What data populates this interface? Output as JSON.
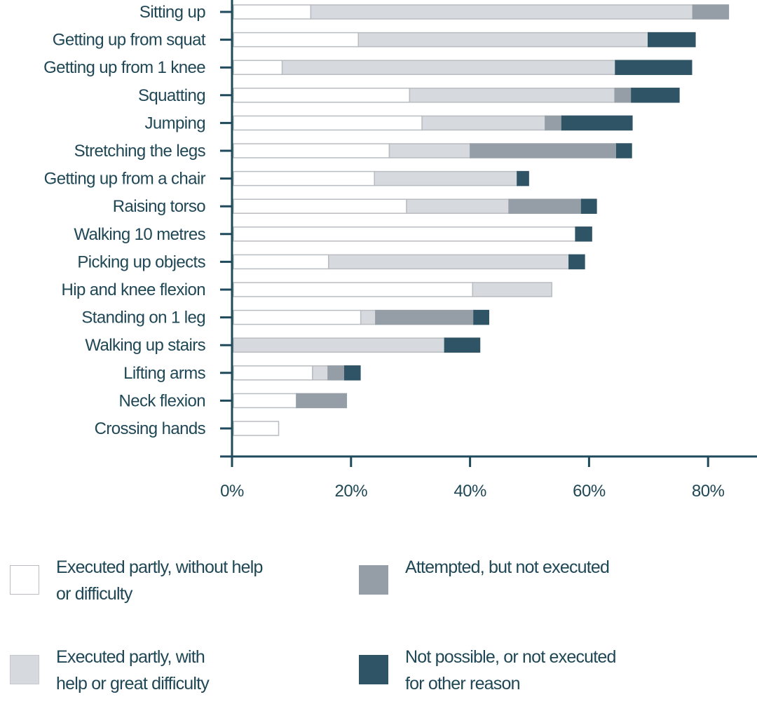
{
  "chart_data": {
    "type": "bar",
    "orientation": "horizontal",
    "stacked": true,
    "title": "",
    "xlabel": "",
    "ylabel": "",
    "xlim": [
      0,
      88
    ],
    "xticks": [
      0,
      20,
      40,
      60,
      80
    ],
    "xtick_labels": [
      "0%",
      "20%",
      "40%",
      "60%",
      "80%"
    ],
    "grid": false,
    "legend_position": "bottom",
    "categories": [
      "Sitting up",
      "Getting up from squat",
      "Getting up from 1 knee",
      "Squatting",
      "Jumping",
      "Stretching the legs",
      "Getting up from a chair",
      "Raising torso",
      "Walking 10 metres",
      "Picking up objects",
      "Hip and knee flexion",
      "Standing on 1 leg",
      "Walking up stairs",
      "Lifting arms",
      "Neck flexion",
      "Crossing hands"
    ],
    "series": [
      {
        "name": "Executed partly, without help or difficulty",
        "color": "#ffffff",
        "stroke": "#b9bcc0",
        "values": [
          13.0,
          21.0,
          8.2,
          29.6,
          31.7,
          26.2,
          23.7,
          29.1,
          57.5,
          16.0,
          40.2,
          21.4,
          0,
          13.3,
          10.6,
          7.6
        ]
      },
      {
        "name": "Executed partly, with help or great difficulty",
        "color": "#d6d9dd",
        "stroke": "#b9bcc0",
        "values": [
          64.2,
          48.7,
          56.0,
          34.5,
          20.7,
          13.6,
          24.0,
          17.2,
          0,
          40.4,
          13.3,
          2.5,
          35.5,
          2.6,
          0,
          0
        ]
      },
      {
        "name": "Attempted, but not executed",
        "color": "#959ea7",
        "stroke": "#959ea7",
        "values": [
          6.0,
          0,
          0,
          2.8,
          2.8,
          24.6,
          0,
          12.2,
          0,
          0,
          0,
          16.5,
          0,
          2.8,
          8.4,
          0
        ]
      },
      {
        "name": "Not possible, or not executed for other reason",
        "color": "#2f5466",
        "stroke": "#2f5466",
        "values": [
          0,
          7.9,
          12.8,
          8.0,
          11.8,
          2.5,
          1.9,
          2.5,
          2.7,
          2.6,
          0,
          2.5,
          5.9,
          2.6,
          0,
          0
        ]
      }
    ]
  },
  "legend": {
    "items": [
      {
        "label_line1": "Executed partly, without help",
        "label_line2": "or difficulty"
      },
      {
        "label_line1": "Attempted, but not executed",
        "label_line2": ""
      },
      {
        "label_line1": "Executed partly, with",
        "label_line2": "help or great difficulty"
      },
      {
        "label_line1": "Not possible, or not executed",
        "label_line2": "for other reason"
      }
    ]
  }
}
